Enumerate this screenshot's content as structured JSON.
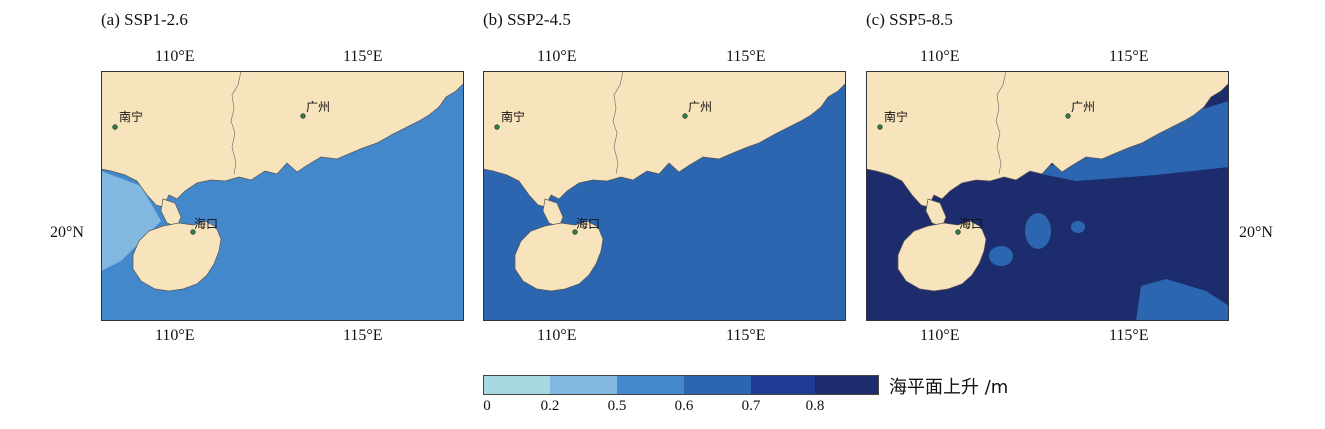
{
  "panels": [
    {
      "title": "(a) SSP1-2.6",
      "level": 0.5
    },
    {
      "title": "(b) SSP2-4.5",
      "level": 0.6
    },
    {
      "title": "(c) SSP5-8.5",
      "level": 0.8
    }
  ],
  "axes": {
    "lon_ticks": [
      "110°E",
      "115°E"
    ],
    "lat_tick": "20°N"
  },
  "cities": {
    "nanning": "南宁",
    "guangzhou": "广州",
    "haikou": "海口"
  },
  "colors": {
    "land": "#f8e4bc",
    "class_0_02": "#a8d8e0",
    "class_02_05": "#82b8e0",
    "class_05_06": "#4488cc",
    "class_06_07": "#2c66b0",
    "class_07_08": "#1e3c94",
    "class_08_up": "#1c2c6c"
  },
  "legend": {
    "title": "海平面上升 /m",
    "ticks": [
      "0",
      "0.2",
      "0.5",
      "0.6",
      "0.7",
      "0.8"
    ]
  }
}
